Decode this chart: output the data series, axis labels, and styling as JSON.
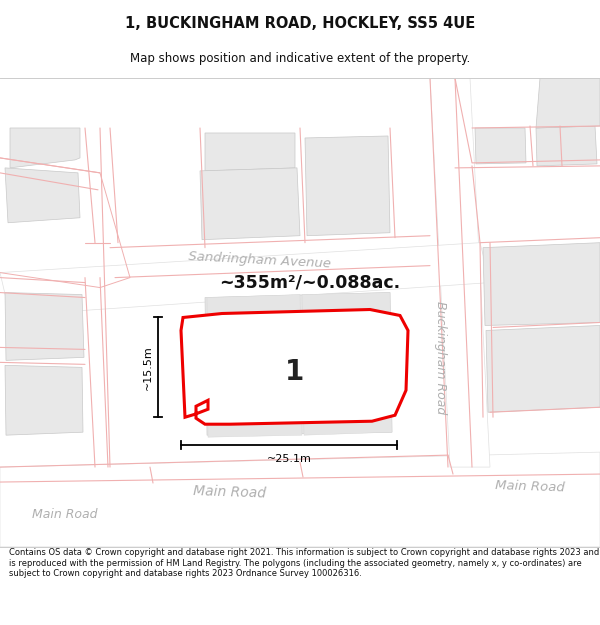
{
  "title": "1, BUCKINGHAM ROAD, HOCKLEY, SS5 4UE",
  "subtitle": "Map shows position and indicative extent of the property.",
  "footer": "Contains OS data © Crown copyright and database right 2021. This information is subject to Crown copyright and database rights 2023 and is reproduced with the permission of HM Land Registry. The polygons (including the associated geometry, namely x, y co-ordinates) are subject to Crown copyright and database rights 2023 Ordnance Survey 100026316.",
  "area_label": "~355m²/~0.088ac.",
  "plot_number": "1",
  "width_label": "~25.1m",
  "height_label": "~15.5m",
  "road_label_sandringham": "Sandringham Avenue",
  "road_label_main1": "Main Road",
  "road_label_main2": "Main Road",
  "road_label_main3": "Main Road",
  "road_label_buckingham": "Buckingham Road",
  "map_bg": "#f7f7f7",
  "building_fill": "#e8e8e8",
  "road_fill": "#ffffff",
  "plot_outline_color": "#ee0000",
  "plot_fill": "#ffffff",
  "line_color": "#000000",
  "road_label_color": "#b0b0b0",
  "road_line_color": "#f0b0b0",
  "building_outline": "#c8c8c8"
}
